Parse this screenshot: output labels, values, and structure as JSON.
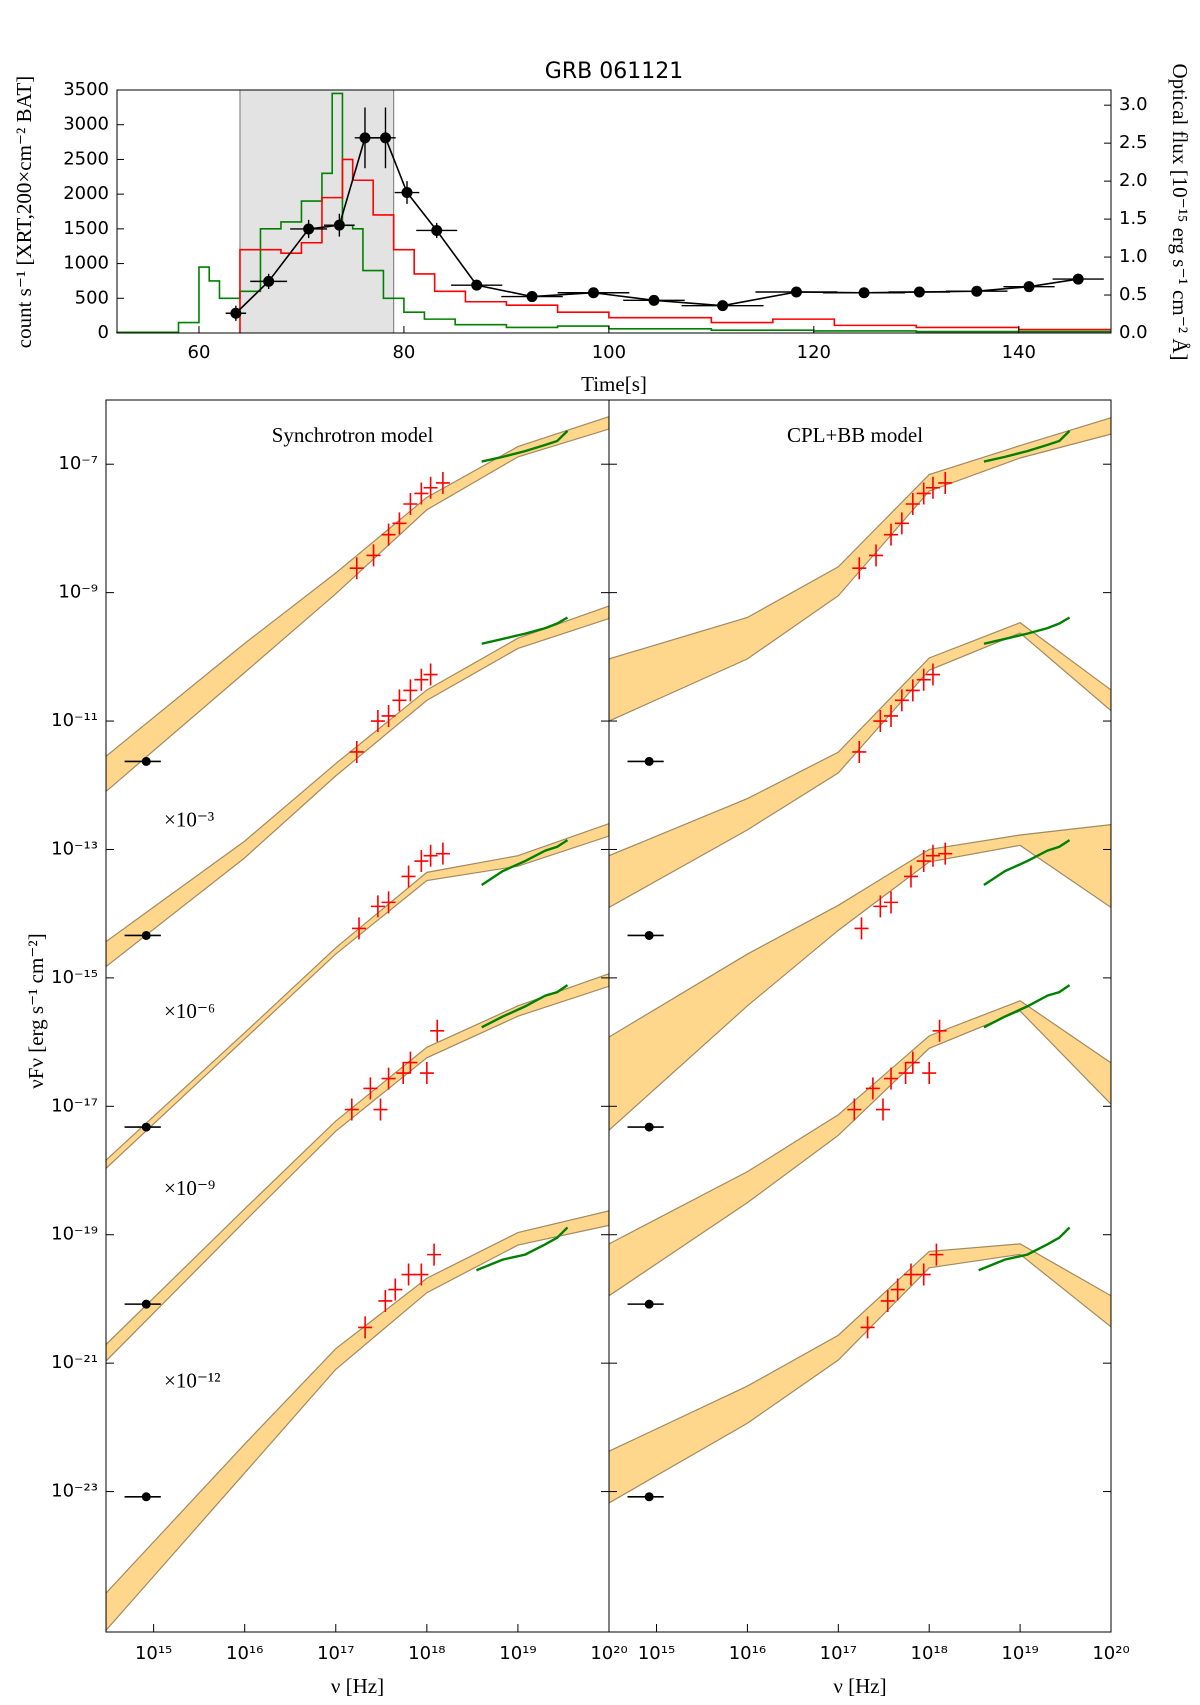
{
  "chart_data": [
    {
      "type": "line",
      "title": "GRB 061121",
      "xlabel": "Time[s]",
      "ylabel": "count s⁻¹ [XRT,200×cm⁻² BAT]",
      "y2label": "Optical flux [10⁻¹⁵ erg s⁻¹ cm⁻² Å]",
      "xlim": [
        52,
        149
      ],
      "xticks": [
        60,
        80,
        100,
        120,
        140
      ],
      "ylim": [
        0,
        3500
      ],
      "yticks": [
        0,
        500,
        1000,
        1500,
        2000,
        2500,
        3000,
        3500
      ],
      "y2lim": [
        0,
        3.2
      ],
      "y2ticks": [
        {
          "value": 0,
          "label": "0.0"
        },
        0.5,
        {
          "value": 1,
          "label": "1.0"
        },
        1.5,
        {
          "value": 2,
          "label": "2.0"
        },
        2.5,
        {
          "value": 3,
          "label": "3.0"
        }
      ],
      "shaded_span": [
        64,
        79
      ],
      "shade_color": "#e3e3e3",
      "series": [
        {
          "style": "step",
          "color": "#008000",
          "bins": [
            52,
            58,
            60,
            61,
            62,
            64,
            66,
            68,
            70,
            72,
            73,
            74,
            75,
            76,
            78,
            80,
            82,
            85,
            90,
            95,
            100,
            110,
            120,
            130,
            149
          ],
          "values": [
            10,
            150,
            950,
            750,
            500,
            600,
            1500,
            1600,
            1900,
            2300,
            3450,
            1550,
            1500,
            900,
            500,
            300,
            200,
            120,
            80,
            100,
            60,
            40,
            30,
            20
          ]
        },
        {
          "style": "step",
          "color": "#ff0000",
          "bins": [
            64,
            68,
            70,
            72,
            74,
            75,
            77,
            79,
            81,
            83,
            86,
            90,
            95,
            100,
            110,
            116,
            122,
            130,
            140,
            149
          ],
          "values": [
            1200,
            1150,
            1300,
            1950,
            2500,
            2200,
            1700,
            1200,
            850,
            600,
            450,
            400,
            300,
            220,
            150,
            200,
            110,
            80,
            50
          ]
        },
        {
          "style": "points",
          "axis": "y2",
          "color": "#000000",
          "x": [
            63.6,
            66.8,
            70.7,
            73.7,
            76.2,
            78.2,
            80.3,
            83.2,
            87.1,
            92.5,
            98.5,
            104.4,
            111.1,
            118.3,
            124.9,
            130.3,
            135.9,
            141.0,
            145.8
          ],
          "values": [
            0.26,
            0.68,
            1.37,
            1.42,
            2.57,
            2.57,
            1.85,
            1.35,
            0.63,
            0.48,
            0.53,
            0.43,
            0.36,
            0.54,
            0.53,
            0.54,
            0.55,
            0.61,
            0.71
          ],
          "xerr": [
            1,
            1.8,
            1.8,
            1.5,
            1,
            1,
            1.2,
            2,
            2.5,
            3,
            3.5,
            3,
            4,
            4,
            4,
            3,
            3,
            2.5,
            2.5
          ],
          "yerr": [
            0.1,
            0.1,
            0.12,
            0.15,
            0.4,
            0.4,
            0.15,
            0.1,
            0.06,
            0.05,
            0.05,
            0.05,
            0.05,
            0.05,
            0.05,
            0.05,
            0.06,
            0.06,
            0.07
          ]
        }
      ]
    },
    {
      "type": "sed",
      "xscale": "log",
      "yscale": "log",
      "ylabel": "νFν [erg s⁻¹ cm⁻²]",
      "xlim": [
        300000000000000.0,
        1e+20
      ],
      "xticks": [
        {
          "value": 1000000000000000.0,
          "label": "10¹⁵"
        },
        {
          "value": 1e+16,
          "label": "10¹⁶"
        },
        {
          "value": 1e+17,
          "label": "10¹⁷"
        },
        {
          "value": 1e+18,
          "label": "10¹⁸"
        },
        {
          "value": 1e+19,
          "label": "10¹⁹"
        },
        {
          "value": 1e+20,
          "label": "10²⁰"
        }
      ],
      "ylim": [
        6.5e-26,
        1e-06
      ],
      "yticks": [
        {
          "value": 1e-07,
          "label": "10⁻⁷"
        },
        {
          "value": 1e-09,
          "label": "10⁻⁹"
        },
        {
          "value": 1e-11,
          "label": "10⁻¹¹"
        },
        {
          "value": 1e-13,
          "label": "10⁻¹³"
        },
        {
          "value": 1e-15,
          "label": "10⁻¹⁵"
        },
        {
          "value": 1e-17,
          "label": "10⁻¹⁷"
        },
        {
          "value": 1e-19,
          "label": "10⁻¹⁹"
        },
        {
          "value": 1e-21,
          "label": "10⁻²¹"
        },
        {
          "value": 1e-23,
          "label": "10⁻²³"
        }
      ],
      "scale_labels": [
        "×10⁻³",
        "×10⁻⁶",
        "×10⁻⁹",
        "×10⁻¹²"
      ],
      "optical_x": 830000000000000.0,
      "optical_x_range": [
        480000000000000.0,
        1200000000000000.0
      ],
      "optical_color": "#000000",
      "xrt_color": "#ff0000",
      "bat_color": "#008000",
      "band_color": "#ffc966",
      "band_edge": "#a08a60",
      "band_x": [
        300000000000000.0,
        1e+16,
        1e+17,
        1e+18,
        1e+19,
        1e+20
      ],
      "epochs": [
        {
          "optical": 2.35e-12,
          "xrt": {
            "x": [
              1.7e+17,
              2.6e+17,
              3.8e+17,
              5e+17,
              6.6e+17,
              8.7e+17,
              1.1e+18,
              1.5e+18
            ],
            "values": [
              2.4e-09,
              3.8e-09,
              8e-09,
              1.2e-08,
              2.4e-08,
              3.5e-08,
              4.3e-08,
              5.1e-08
            ]
          },
          "bat": {
            "x": [
              4e+18,
              6.8e+18,
              1.2e+19,
              2e+19,
              2.7e+19,
              3.5e+19
            ],
            "values": [
              1.1e-07,
              1.3e-07,
              1.6e-07,
              2e-07,
              2.3e-07,
              3.3e-07
            ]
          }
        },
        {
          "optical": 4.58e-15,
          "xrt": {
            "x": [
              1.7e+17,
              2.9e+17,
              3.8e+17,
              5e+17,
              6.6e+17,
              8.7e+17,
              1.1e+18
            ],
            "values": [
              3.3e-12,
              1e-11,
              1.2e-11,
              2.1e-11,
              3e-11,
              4.4e-11,
              5.3e-11
            ]
          },
          "bat": {
            "x": [
              4e+18,
              6.8e+18,
              1.2e+19,
              2e+19,
              2.7e+19,
              3.5e+19
            ],
            "values": [
              1.6e-10,
              1.9e-10,
              2.3e-10,
              2.8e-10,
              3.3e-10,
              4.1e-10
            ]
          }
        },
        {
          "optical": 4.75e-18,
          "xrt": {
            "x": [
              1.8e+17,
              2.9e+17,
              3.8e+17,
              6.3e+17,
              8.7e+17,
              1.1e+18,
              1.5e+18
            ],
            "values": [
              5.9e-15,
              1.3e-14,
              1.5e-14,
              3.8e-14,
              6.6e-14,
              8e-14,
              8.6e-14
            ]
          },
          "bat": {
            "x": [
              4e+18,
              6.8e+18,
              1.2e+19,
              2e+19,
              2.7e+19,
              3.5e+19
            ],
            "values": [
              2.8e-14,
              4.6e-14,
              6.6e-14,
              9.6e-14,
              1.1e-13,
              1.4e-13
            ]
          }
        },
        {
          "optical": 8.3e-21,
          "xrt": {
            "x": [
              1.5e+17,
              2.4e+17,
              3.1e+17,
              3.8e+17,
              5.5e+17,
              6.6e+17,
              1e+18,
              1.3e+18
            ],
            "values": [
              8.9e-18,
              1.9e-17,
              8.9e-18,
              2.7e-17,
              3.3e-17,
              4.8e-17,
              3.3e-17,
              1.5e-16
            ]
          },
          "bat": {
            "x": [
              4e+18,
              6.8e+18,
              1.2e+19,
              2e+19,
              2.7e+19,
              3.5e+19
            ],
            "values": [
              1.7e-16,
              2.5e-16,
              3.6e-16,
              5.3e-16,
              6e-16,
              7.7e-16
            ]
          }
        },
        {
          "optical": 8.3e-24,
          "xrt": {
            "x": [
              2.1e+17,
              3.5e+17,
              4.5e+17,
              6.3e+17,
              8.7e+17,
              1.2e+18
            ],
            "values": [
              3.6e-21,
              9.3e-21,
              1.4e-20,
              2.4e-20,
              2.4e-20,
              4.9e-20
            ]
          },
          "bat": {
            "x": [
              3.5e+18,
              6.8e+18,
              1.2e+19,
              2e+19,
              2.7e+19,
              3.5e+19
            ],
            "values": [
              2.8e-20,
              4.1e-20,
              4.9e-20,
              7.1e-20,
              9e-20,
              1.3e-19
            ]
          }
        }
      ],
      "panels": [
        {
          "title": "Synchrotron model",
          "xlabel": "ν [Hz]",
          "bands": [
            {
              "upper": [
                2.83e-12,
                1.62e-10,
                2.02e-09,
                3.05e-08,
                1.88e-07,
                5.5e-07
              ],
              "lower": [
                8e-13,
                5.7e-11,
                9.6e-10,
                1.95e-08,
                1.3e-07,
                3.53e-07
              ]
            },
            {
              "upper": [
                3.67e-15,
                1.35e-13,
                2.18e-12,
                3.05e-11,
                1.95e-10,
                6.2e-10
              ],
              "lower": [
                1.5e-15,
                7.4e-14,
                1.4e-12,
                2.1e-11,
                1.35e-10,
                3.95e-10
              ]
            },
            {
              "upper": [
                1.45e-18,
                1.4e-16,
                2.94e-15,
                4.4e-14,
                8e-14,
                2.53e-13
              ],
              "lower": [
                1.08e-18,
                1.12e-16,
                2.35e-15,
                3.28e-14,
                5.5e-14,
                1.62e-13
              ]
            },
            {
              "upper": [
                1.95e-21,
                2.53e-19,
                5.9e-18,
                8.3e-17,
                3.67e-16,
                1.16e-15
              ],
              "lower": [
                1.08e-21,
                1.62e-19,
                4.1e-18,
                5.7e-17,
                2.53e-16,
                7.4e-16
              ]
            },
            {
              "upper": [
                2.62e-25,
                5.5e-23,
                1.68e-21,
                2.1e-20,
                1.08e-19,
                2.35e-19
              ],
              "lower": [
                6.9e-26,
                1.95e-23,
                8e-22,
                1.25e-20,
                6.9e-20,
                1.4e-19
              ]
            }
          ]
        },
        {
          "title": "CPL+BB model",
          "xlabel": "ν [Hz]",
          "bands": [
            {
              "upper": [
                9.3e-11,
                4.1e-10,
                2.53e-09,
                6.9e-08,
                1.95e-07,
                5.3e-07
              ],
              "lower": [
                1e-11,
                9.3e-11,
                8.95e-10,
                3.81e-08,
                1.25e-07,
                2.94e-07
              ]
            },
            {
              "upper": [
                8e-14,
                6.2e-13,
                3.28e-12,
                9.6e-11,
                3.4e-10,
                3.05e-11
              ],
              "lower": [
                1.25e-14,
                2.02e-13,
                1.56e-12,
                6.2e-11,
                2.35e-10,
                1.45e-11
              ]
            },
            {
              "upper": [
                1.2e-16,
                2.35e-15,
                1.35e-14,
                1e-13,
                1.68e-13,
                2.44e-13
              ],
              "lower": [
                4.25e-18,
                3.67e-16,
                5.5e-15,
                6.4e-14,
                1.16e-13,
                1.25e-14
              ]
            },
            {
              "upper": [
                7.2e-20,
                9.6e-19,
                7.4e-18,
                1.25e-16,
                4.4e-16,
                4.75e-17
              ],
              "lower": [
                1.12e-20,
                3.16e-19,
                3.53e-18,
                8e-17,
                3.05e-16,
                1.08e-17
              ]
            },
            {
              "upper": [
                4.25e-23,
                4.4e-22,
                2.72e-21,
                5.5e-20,
                7.2e-20,
                1.12e-20
              ],
              "lower": [
                6.65e-24,
                1.16e-22,
                1.12e-21,
                3.05e-20,
                4.95e-20,
                3.67e-21
              ]
            }
          ]
        }
      ]
    }
  ]
}
